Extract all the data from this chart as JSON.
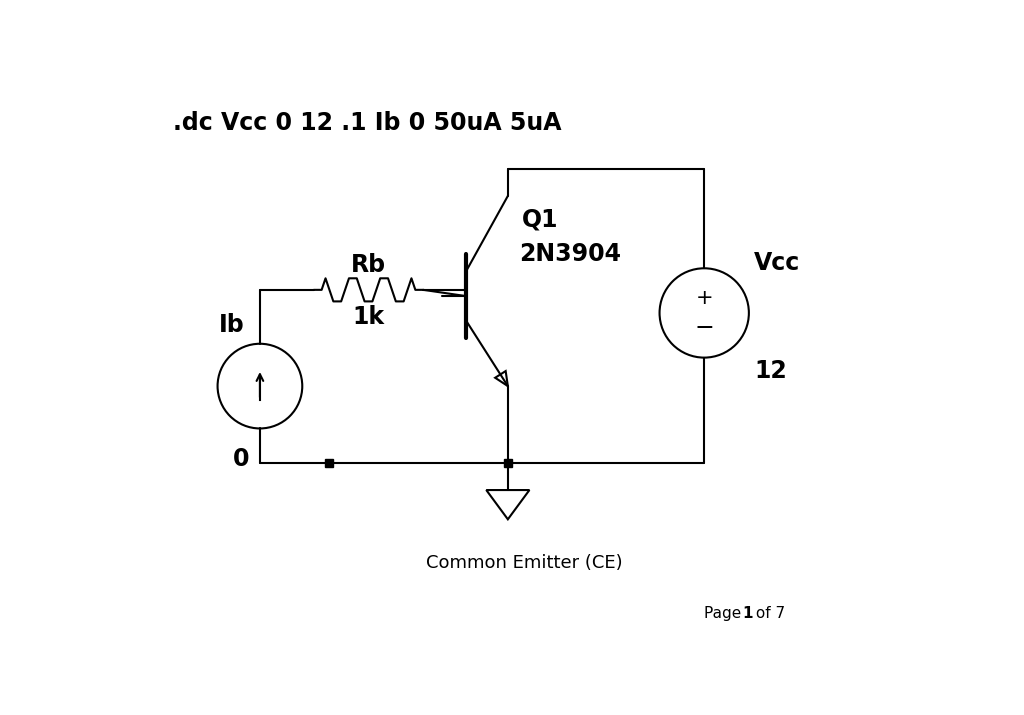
{
  "title_text": ".dc Vcc 0 12 .1 Ib 0 50uA 5uA",
  "subtitle_text": "Common Emitter (CE)",
  "page_text": "Page 1 of 7",
  "bg_color": "#ffffff",
  "line_color": "#000000",
  "lw": 1.5,
  "lw_thick": 3.0,
  "labels": {
    "Rb": "Rb",
    "Rb_val": "1k",
    "Q1": "Q1",
    "model": "2N3904",
    "Vcc": "Vcc",
    "Vcc_val": "12",
    "Ib": "Ib",
    "Ib_val": "0"
  }
}
